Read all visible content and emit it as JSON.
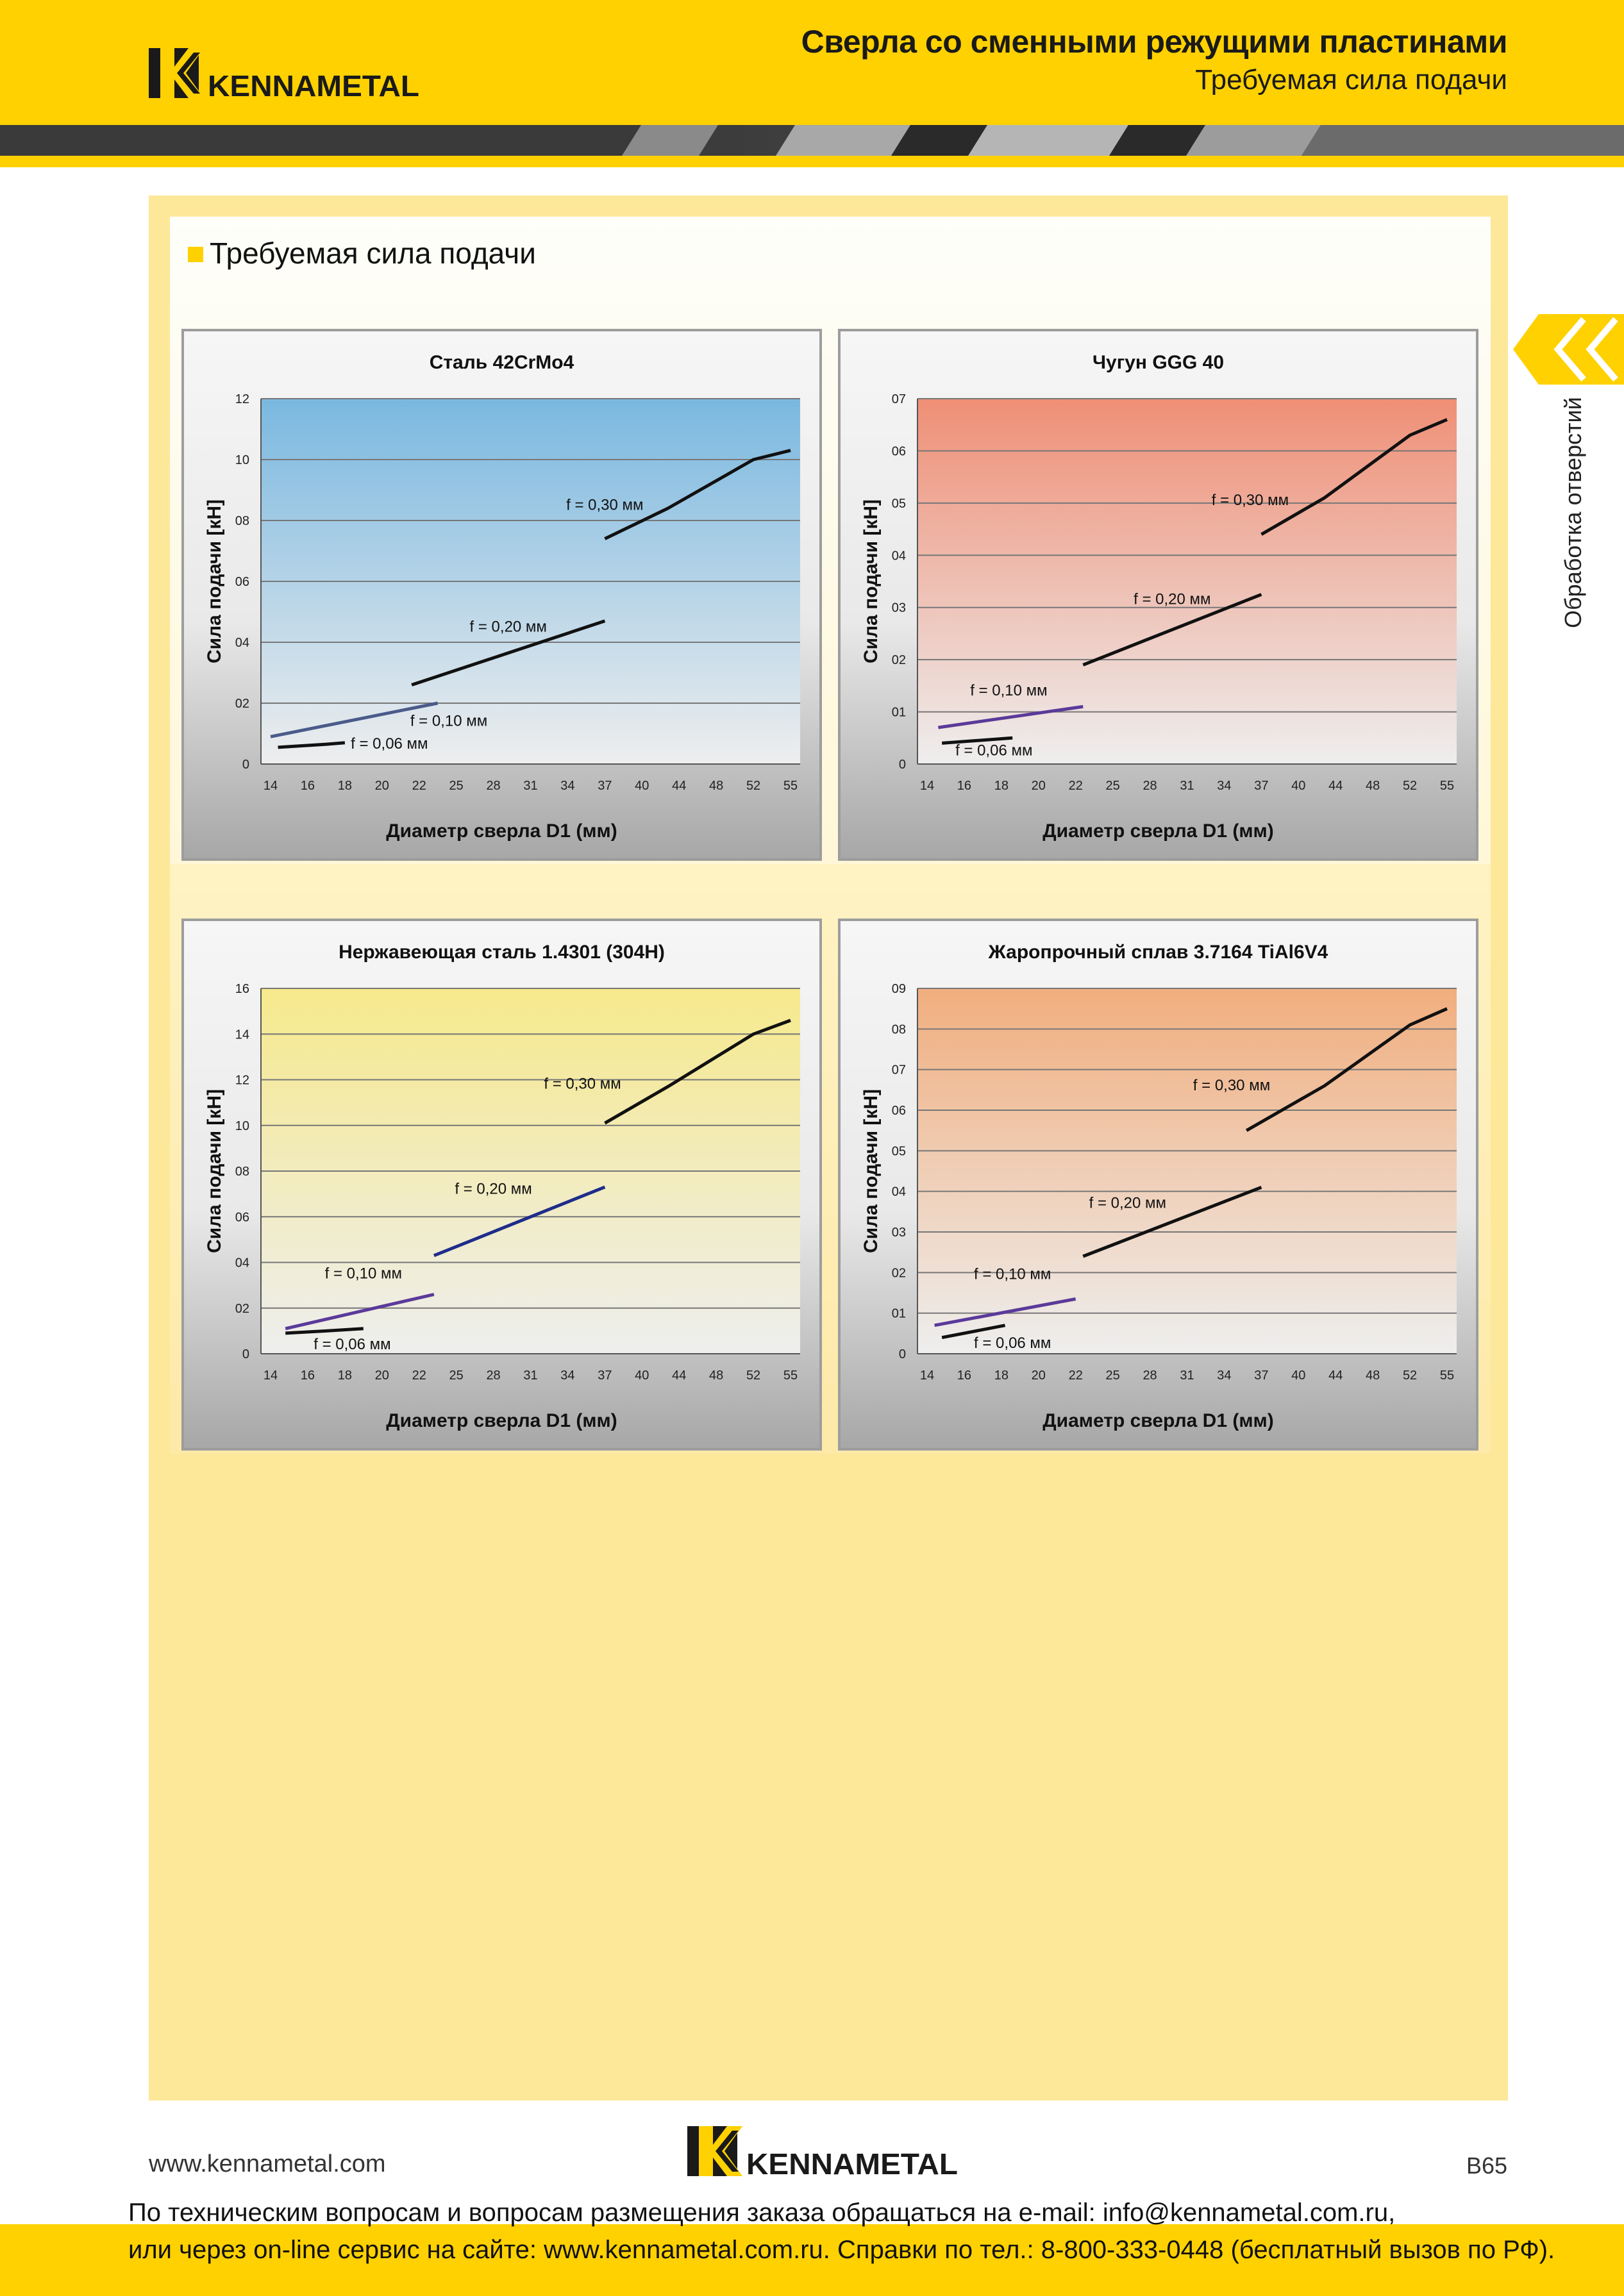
{
  "header": {
    "title": "Сверла со сменными режущими пластинами",
    "subtitle": "Требуемая сила подачи",
    "logo_text": "KENNAMETAL"
  },
  "section": {
    "title": "Требуемая сила подачи"
  },
  "side_tab": {
    "label": "Обработка отверстий"
  },
  "footer": {
    "url": "www.kennametal.com",
    "page": "B65",
    "logo_text": "KENNAMETAL",
    "contact_line1": "По техническим вопросам и вопросам размещения заказа обращаться на e-mail: info@kennametal.com.ru,",
    "contact_line2": "или через on-line сервис на сайте: www.kennametal.com.ru. Справки по тел.: 8-800-333-0448 (бесплатный вызов по РФ)."
  },
  "colors": {
    "brand_yellow": "#ffd100",
    "steel_bg_top": "#7ab8e0",
    "cast_iron_bg_top": "#ef8f76",
    "stainless_bg_top": "#f6e98c",
    "superalloy_bg_top": "#f1ae7e"
  },
  "chart_data": [
    {
      "type": "line",
      "title": "Сталь 42CrMo4",
      "xlabel": "Диаметр сверла D1 (мм)",
      "ylabel": "Сила подачи [кН]",
      "categories": [
        "14",
        "16",
        "18",
        "20",
        "22",
        "25",
        "28",
        "31",
        "34",
        "37",
        "40",
        "44",
        "48",
        "52",
        "55"
      ],
      "y_ticks": [
        "0",
        "02",
        "04",
        "06",
        "08",
        "10",
        "12"
      ],
      "ylim": [
        0,
        12
      ],
      "grid": true,
      "series": [
        {
          "name": "f = 0,06 мм",
          "color": "#111111",
          "points": [
            [
              0.2,
              0.55
            ],
            [
              1.5,
              0.65
            ],
            [
              2.0,
              0.7
            ]
          ],
          "label_at": [
            3.2,
            0.65
          ]
        },
        {
          "name": "f = 0,10 мм",
          "color": "#4a5b8a",
          "points": [
            [
              0.0,
              0.9
            ],
            [
              4.5,
              2.0
            ]
          ],
          "label_at": [
            4.8,
            1.4
          ]
        },
        {
          "name": "f = 0,20 мм",
          "color": "#111111",
          "points": [
            [
              3.8,
              2.6
            ],
            [
              9.0,
              4.7
            ]
          ],
          "label_at": [
            6.4,
            4.5
          ]
        },
        {
          "name": "f = 0,30 мм",
          "color": "#111111",
          "points": [
            [
              9.0,
              7.4
            ],
            [
              10.7,
              8.4
            ],
            [
              13.0,
              10.0
            ],
            [
              14.0,
              10.3
            ]
          ],
          "label_at": [
            9.0,
            8.5
          ]
        }
      ]
    },
    {
      "type": "line",
      "title": "Чугун GGG 40",
      "xlabel": "Диаметр сверла D1 (мм)",
      "ylabel": "Сила подачи [кН]",
      "categories": [
        "14",
        "16",
        "18",
        "20",
        "22",
        "25",
        "28",
        "31",
        "34",
        "37",
        "40",
        "44",
        "48",
        "52",
        "55"
      ],
      "y_ticks": [
        "0",
        "01",
        "02",
        "03",
        "04",
        "05",
        "06",
        "07"
      ],
      "ylim": [
        0,
        7
      ],
      "grid": true,
      "series": [
        {
          "name": "f = 0,06 мм",
          "color": "#111111",
          "points": [
            [
              0.4,
              0.4
            ],
            [
              2.3,
              0.5
            ]
          ],
          "label_at": [
            1.8,
            0.25
          ]
        },
        {
          "name": "f = 0,10 мм",
          "color": "#5b3a9a",
          "points": [
            [
              0.3,
              0.7
            ],
            [
              4.2,
              1.1
            ]
          ],
          "label_at": [
            2.2,
            1.4
          ]
        },
        {
          "name": "f = 0,20 мм",
          "color": "#111111",
          "points": [
            [
              4.2,
              1.9
            ],
            [
              9.0,
              3.25
            ]
          ],
          "label_at": [
            6.6,
            3.15
          ]
        },
        {
          "name": "f = 0,30 мм",
          "color": "#111111",
          "points": [
            [
              9.0,
              4.4
            ],
            [
              10.7,
              5.1
            ],
            [
              13.0,
              6.3
            ],
            [
              14.0,
              6.6
            ]
          ],
          "label_at": [
            8.7,
            5.05
          ]
        }
      ]
    },
    {
      "type": "line",
      "title": "Нержавеющая сталь 1.4301 (304H)",
      "xlabel": "Диаметр сверла D1 (мм)",
      "ylabel": "Сила подачи [кН]",
      "categories": [
        "14",
        "16",
        "18",
        "20",
        "22",
        "25",
        "28",
        "31",
        "34",
        "37",
        "40",
        "44",
        "48",
        "52",
        "55"
      ],
      "y_ticks": [
        "0",
        "02",
        "04",
        "06",
        "08",
        "10",
        "12",
        "14",
        "16"
      ],
      "ylim": [
        0,
        16
      ],
      "grid": true,
      "series": [
        {
          "name": "f = 0,06 мм",
          "color": "#111111",
          "points": [
            [
              0.4,
              0.9
            ],
            [
              1.5,
              1.0
            ],
            [
              2.5,
              1.1
            ]
          ],
          "label_at": [
            2.2,
            0.4
          ]
        },
        {
          "name": "f = 0,10 мм",
          "color": "#5b3a9a",
          "points": [
            [
              0.4,
              1.1
            ],
            [
              4.4,
              2.6
            ]
          ],
          "label_at": [
            2.5,
            3.5
          ]
        },
        {
          "name": "f = 0,20 мм",
          "color": "#1e2d8a",
          "points": [
            [
              4.4,
              4.3
            ],
            [
              9.0,
              7.3
            ]
          ],
          "label_at": [
            6.0,
            7.2
          ]
        },
        {
          "name": "f = 0,30 мм",
          "color": "#111111",
          "points": [
            [
              9.0,
              10.1
            ],
            [
              10.7,
              11.7
            ],
            [
              13.0,
              14.0
            ],
            [
              14.0,
              14.6
            ]
          ],
          "label_at": [
            8.4,
            11.8
          ]
        }
      ]
    },
    {
      "type": "line",
      "title": "Жаропрочный сплав 3.7164 TiAl6V4",
      "xlabel": "Диаметр сверла D1 (мм)",
      "ylabel": "Сила подачи [кН]",
      "categories": [
        "14",
        "16",
        "18",
        "20",
        "22",
        "25",
        "28",
        "31",
        "34",
        "37",
        "40",
        "44",
        "48",
        "52",
        "55"
      ],
      "y_ticks": [
        "0",
        "01",
        "02",
        "03",
        "04",
        "05",
        "06",
        "07",
        "08",
        "09"
      ],
      "ylim": [
        0,
        9
      ],
      "grid": true,
      "series": [
        {
          "name": "f = 0,06 мм",
          "color": "#111111",
          "points": [
            [
              0.4,
              0.4
            ],
            [
              2.1,
              0.7
            ]
          ],
          "label_at": [
            2.3,
            0.25
          ]
        },
        {
          "name": "f = 0,10 мм",
          "color": "#5b3a9a",
          "points": [
            [
              0.2,
              0.7
            ],
            [
              4.0,
              1.35
            ]
          ],
          "label_at": [
            2.3,
            1.95
          ]
        },
        {
          "name": "f = 0,20 мм",
          "color": "#111111",
          "points": [
            [
              4.2,
              2.4
            ],
            [
              9.0,
              4.1
            ]
          ],
          "label_at": [
            5.4,
            3.7
          ]
        },
        {
          "name": "f = 0,30 мм",
          "color": "#111111",
          "points": [
            [
              8.6,
              5.5
            ],
            [
              10.7,
              6.6
            ],
            [
              13.0,
              8.1
            ],
            [
              14.0,
              8.5
            ]
          ],
          "label_at": [
            8.2,
            6.6
          ]
        }
      ]
    }
  ]
}
